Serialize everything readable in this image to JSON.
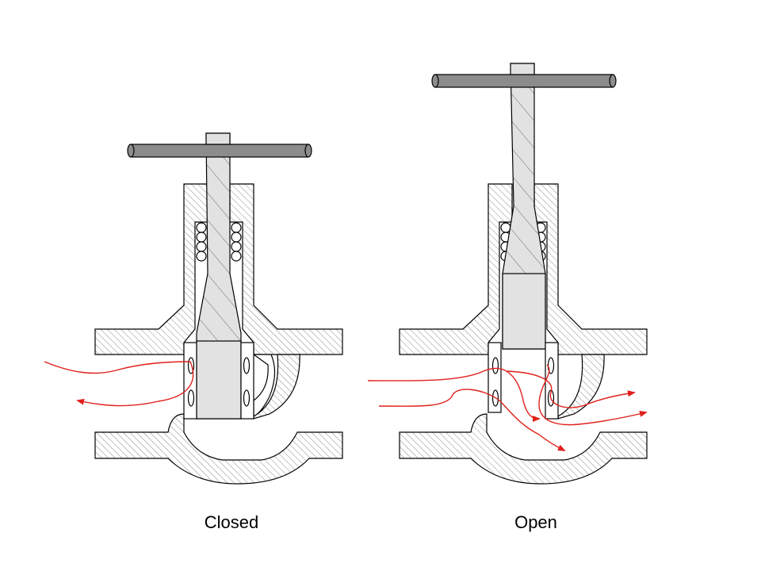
{
  "captions": {
    "closed": "Closed",
    "open": "Open"
  },
  "colors": {
    "outline": "#000000",
    "hatch": "#8a8a8a",
    "handle": "#8c8c8c",
    "stem": "#e0e0e0",
    "flow": "#e0201b"
  },
  "states": [
    {
      "name": "closed",
      "valve_open": false
    },
    {
      "name": "open",
      "valve_open": true
    }
  ]
}
